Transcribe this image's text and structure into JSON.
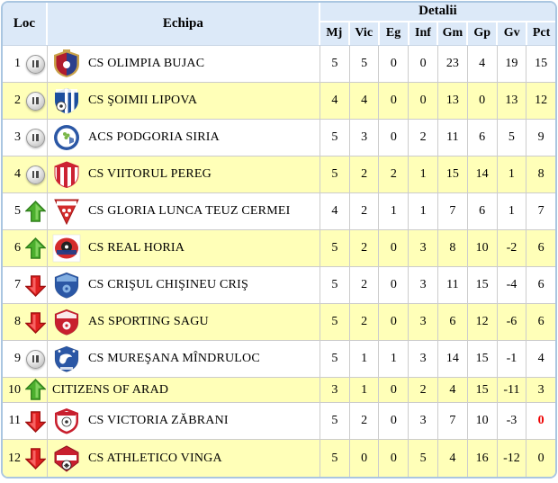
{
  "header": {
    "loc": "Loc",
    "echipa": "Echipa",
    "detalii": "Detalii",
    "stat_columns": [
      "Mj",
      "Vic",
      "Eg",
      "Inf",
      "Gm",
      "Gp",
      "Gv",
      "Pct"
    ]
  },
  "rows": [
    {
      "rank": "1",
      "trend": "pause",
      "team": "CS OLIMPIA BUJAC",
      "logo": {
        "shape": "ornate",
        "colors": [
          "#b01c2e",
          "#2b3e8c",
          "#c9a24a"
        ]
      },
      "stats": [
        "5",
        "5",
        "0",
        "0",
        "23",
        "4",
        "19",
        "15"
      ]
    },
    {
      "rank": "2",
      "trend": "pause",
      "team": "CS ŞOIMII LIPOVA",
      "logo": {
        "shape": "stripes",
        "colors": [
          "#1d4f9e",
          "#ffffff"
        ]
      },
      "stats": [
        "4",
        "4",
        "0",
        "0",
        "13",
        "0",
        "13",
        "12"
      ]
    },
    {
      "rank": "3",
      "trend": "pause",
      "team": "ACS PODGORIA SIRIA",
      "logo": {
        "shape": "circle",
        "colors": [
          "#2b57a5",
          "#ffffff",
          "#7ab648"
        ]
      },
      "stats": [
        "5",
        "3",
        "0",
        "2",
        "11",
        "6",
        "5",
        "9"
      ]
    },
    {
      "rank": "4",
      "trend": "pause",
      "team": "CS VIITORUL PEREG",
      "logo": {
        "shape": "vstripes",
        "colors": [
          "#cc2233",
          "#ffffff"
        ]
      },
      "stats": [
        "5",
        "2",
        "2",
        "1",
        "15",
        "14",
        "1",
        "8"
      ]
    },
    {
      "rank": "5",
      "trend": "up",
      "team": "CS GLORIA LUNCA TEUZ CERMEI",
      "logo": {
        "shape": "triangle",
        "colors": [
          "#d42b2b",
          "#ffffff"
        ]
      },
      "stats": [
        "4",
        "2",
        "1",
        "1",
        "7",
        "6",
        "1",
        "7"
      ]
    },
    {
      "rank": "6",
      "trend": "up",
      "team": "CS REAL HORIA",
      "logo": {
        "shape": "ball",
        "colors": [
          "#d42b2b",
          "#1d3f8c"
        ]
      },
      "stats": [
        "5",
        "2",
        "0",
        "3",
        "8",
        "10",
        "-2",
        "6"
      ]
    },
    {
      "rank": "7",
      "trend": "down",
      "team": "CS CRIŞUL CHIŞINEU CRIŞ",
      "logo": {
        "shape": "shield",
        "colors": [
          "#2b57a5",
          "#8cb8e8"
        ]
      },
      "stats": [
        "5",
        "2",
        "0",
        "3",
        "11",
        "15",
        "-4",
        "6"
      ]
    },
    {
      "rank": "8",
      "trend": "down",
      "team": "AS SPORTING SAGU",
      "logo": {
        "shape": "shield",
        "colors": [
          "#c81f2e",
          "#ffffff"
        ]
      },
      "stats": [
        "5",
        "2",
        "0",
        "3",
        "6",
        "12",
        "-6",
        "6"
      ]
    },
    {
      "rank": "9",
      "trend": "pause",
      "team": "CS MUREŞANA MÎNDRULOC",
      "logo": {
        "shape": "eagle",
        "colors": [
          "#2b57a5",
          "#ffffff"
        ]
      },
      "stats": [
        "5",
        "1",
        "1",
        "3",
        "14",
        "15",
        "-1",
        "4"
      ]
    },
    {
      "rank": "10",
      "trend": "up",
      "team": "CITIZENS OF ARAD",
      "logo": {
        "shape": "none",
        "colors": []
      },
      "stats": [
        "3",
        "1",
        "0",
        "2",
        "4",
        "15",
        "-11",
        "3"
      ]
    },
    {
      "rank": "11",
      "trend": "down",
      "team": "CS VICTORIA ZĂBRANI",
      "logo": {
        "shape": "ballshield",
        "colors": [
          "#c81f2e",
          "#ffffff"
        ]
      },
      "stats": [
        "5",
        "2",
        "0",
        "3",
        "7",
        "10",
        "-3",
        "0"
      ],
      "pct_red": true
    },
    {
      "rank": "12",
      "trend": "down",
      "team": "CS ATHLETICO VINGA",
      "logo": {
        "shape": "pentagon",
        "colors": [
          "#c81f2e",
          "#ffffff"
        ]
      },
      "stats": [
        "5",
        "0",
        "0",
        "5",
        "4",
        "16",
        "-12",
        "0"
      ]
    }
  ],
  "colors": {
    "header_bg": "#dce9f8",
    "row_alt": "#ffffb8",
    "grid": "#cccccc",
    "outer_border": "#aac6e1",
    "pct_negative_red": "#ee0000",
    "trend_up_green": "#4caf2e",
    "trend_down_red": "#e02020"
  }
}
